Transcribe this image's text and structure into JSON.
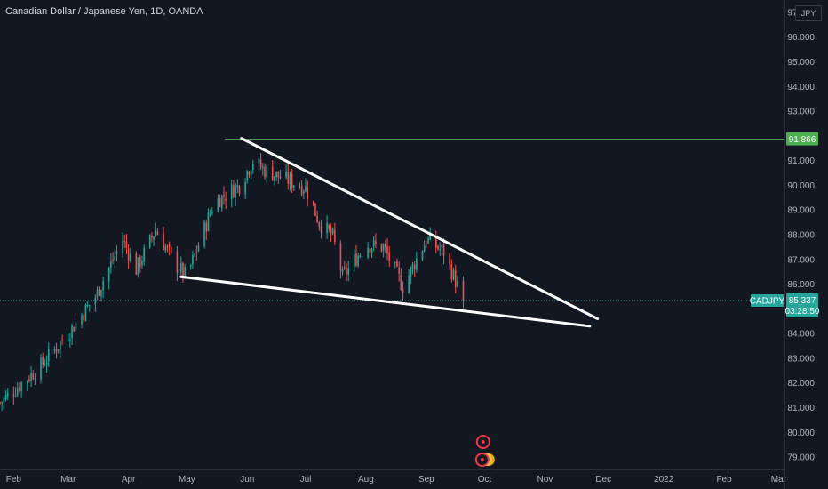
{
  "header": {
    "title": "Canadian Dollar / Japanese Yen, 1D, OANDA",
    "currency_button": "JPY"
  },
  "colors": {
    "background": "#131722",
    "up": "#26a69a",
    "down": "#ef5350",
    "resistance": "#4caf50",
    "trendline": "#ffffff",
    "text": "#b2b5be"
  },
  "chart_data": {
    "type": "candlestick",
    "symbol": "CADJPY",
    "y_unit": "JPY",
    "ylim": [
      78.5,
      97.5
    ],
    "y_ticks": [
      "79.000",
      "80.000",
      "81.000",
      "82.000",
      "83.000",
      "84.000",
      "85.000",
      "86.000",
      "87.000",
      "88.000",
      "89.000",
      "90.000",
      "91.000",
      "92.000",
      "93.000",
      "94.000",
      "95.000",
      "96.000",
      "97.000"
    ],
    "x_ticks": [
      {
        "label": "Feb",
        "date": "2021-02-01"
      },
      {
        "label": "Mar",
        "date": "2021-03-01"
      },
      {
        "label": "Apr",
        "date": "2021-04-01"
      },
      {
        "label": "May",
        "date": "2021-05-01"
      },
      {
        "label": "Jun",
        "date": "2021-06-01"
      },
      {
        "label": "Jul",
        "date": "2021-07-01"
      },
      {
        "label": "Aug",
        "date": "2021-08-01"
      },
      {
        "label": "Sep",
        "date": "2021-09-01"
      },
      {
        "label": "Oct",
        "date": "2021-10-01"
      },
      {
        "label": "Nov",
        "date": "2021-11-01"
      },
      {
        "label": "Dec",
        "date": "2021-12-01"
      },
      {
        "label": "2022",
        "date": "2022-01-01"
      },
      {
        "label": "Feb",
        "date": "2022-02-01"
      },
      {
        "label": "Mar",
        "date": "2022-03-01"
      }
    ],
    "xlim": [
      "2021-01-25",
      "2022-03-04"
    ],
    "ohlc_monthly_path": [
      {
        "date": "2021-01-25",
        "close": 81.2
      },
      {
        "date": "2021-02-15",
        "close": 82.7
      },
      {
        "date": "2021-03-01",
        "close": 84.0
      },
      {
        "date": "2021-03-15",
        "close": 85.5
      },
      {
        "date": "2021-03-29",
        "close": 87.8
      },
      {
        "date": "2021-04-05",
        "close": 86.6
      },
      {
        "date": "2021-04-15",
        "close": 88.2
      },
      {
        "date": "2021-04-25",
        "close": 86.8
      },
      {
        "date": "2021-05-01",
        "close": 86.3
      },
      {
        "date": "2021-05-15",
        "close": 89.3
      },
      {
        "date": "2021-05-28",
        "close": 90.0
      },
      {
        "date": "2021-06-04",
        "close": 91.0
      },
      {
        "date": "2021-06-10",
        "close": 90.6
      },
      {
        "date": "2021-06-22",
        "close": 90.2
      },
      {
        "date": "2021-07-01",
        "close": 89.9
      },
      {
        "date": "2021-07-08",
        "close": 88.5
      },
      {
        "date": "2021-07-15",
        "close": 87.9
      },
      {
        "date": "2021-07-20",
        "close": 86.3
      },
      {
        "date": "2021-08-01",
        "close": 87.6
      },
      {
        "date": "2021-08-10",
        "close": 87.5
      },
      {
        "date": "2021-08-20",
        "close": 85.9
      },
      {
        "date": "2021-09-01",
        "close": 87.8
      },
      {
        "date": "2021-09-10",
        "close": 87.3
      },
      {
        "date": "2021-09-20",
        "close": 85.34
      }
    ],
    "resistance_level": {
      "value": 91.866,
      "label": "91.866"
    },
    "last_price": {
      "symbol": "CADJPY",
      "value": 85.337,
      "label": "85.337",
      "countdown": "03:28:50"
    },
    "trendlines": [
      {
        "name": "upper-trendline",
        "from": {
          "date": "2021-05-29",
          "value": 91.9
        },
        "to": {
          "date": "2021-11-28",
          "value": 84.6
        }
      },
      {
        "name": "lower-trendline",
        "from": {
          "date": "2021-04-28",
          "value": 86.3
        },
        "to": {
          "date": "2021-11-24",
          "value": 84.3
        }
      }
    ],
    "event_markers": [
      {
        "date": "2021-09-27",
        "count": 1
      },
      {
        "date": "2021-09-27",
        "count": 3
      }
    ],
    "grid": false
  }
}
